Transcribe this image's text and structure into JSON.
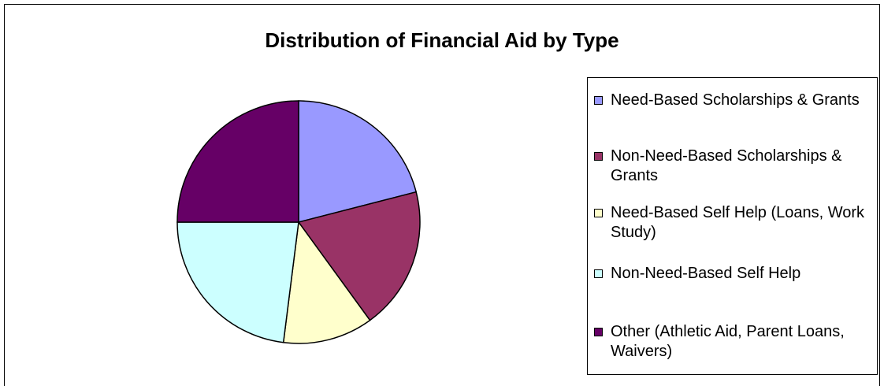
{
  "chart_data": {
    "type": "pie",
    "title": "Distribution of Financial Aid by Type",
    "categories": [
      "Need-Based Scholarships & Grants",
      "Non-Need-Based Scholarships & Grants",
      "Need-Based Self Help (Loans, Work Study)",
      "Non-Need-Based Self Help",
      "Other (Athletic Aid, Parent Loans, Waivers)"
    ],
    "values": [
      21,
      19,
      12,
      23,
      25
    ],
    "colors": [
      "#9999FF",
      "#993366",
      "#FFFFCC",
      "#CCFFFF",
      "#660066"
    ],
    "legend_position": "right"
  }
}
